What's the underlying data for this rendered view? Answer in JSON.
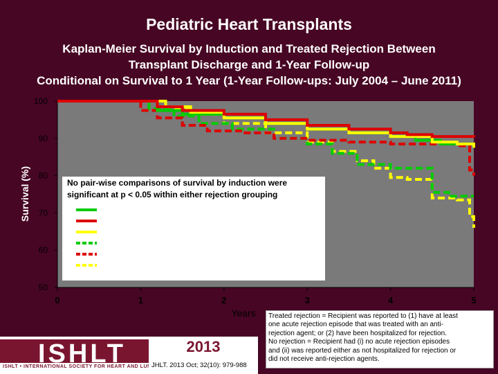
{
  "header": {
    "title": "Pediatric Heart Transplants",
    "subtitle_line1": "Kaplan-Meier Survival by Induction and Treated Rejection Between",
    "subtitle_line2": "Transplant Discharge and 1-Year Follow-up",
    "subtitle_line3": "Conditional on Survival to 1 Year (1-Year Follow-ups: July 2004 – June 2011)"
  },
  "colors": {
    "background": "#470624",
    "plot_area": "#7a7a7a",
    "green": "#00cc00",
    "red": "#dd0000",
    "yellow": "#ffff00"
  },
  "chart_data": {
    "type": "line",
    "title": "Pediatric Heart Transplants",
    "xlabel": "Years",
    "ylabel": "Survival (%)",
    "xlim": [
      0,
      5
    ],
    "ylim": [
      50,
      100
    ],
    "x_ticks": [
      "0",
      "1",
      "2",
      "3",
      "4",
      "5"
    ],
    "y_ticks": [
      "50",
      "60",
      "70",
      "80",
      "90",
      "100"
    ],
    "grid": false,
    "annotation_line1": "No pair-wise comparisons of survival by induction were",
    "annotation_line2": "significant at p < 0.05 within either rejection grouping",
    "legend_position": "middle-left",
    "series": [
      {
        "key": "red_solid",
        "color": "red",
        "dash": false,
        "x": [
          0,
          1.0,
          1.2,
          1.5,
          2.0,
          2.5,
          3.0,
          3.5,
          4.0,
          4.2,
          4.5,
          5.0
        ],
        "y": [
          100,
          100,
          98.5,
          97.5,
          96.5,
          95,
          93.5,
          92.5,
          91.5,
          91,
          90.5,
          90.2
        ]
      },
      {
        "key": "yellow_solid",
        "color": "yellow",
        "dash": false,
        "x": [
          0,
          1.1,
          1.3,
          1.6,
          2.0,
          2.5,
          3.0,
          3.5,
          4.0,
          4.5,
          4.8,
          5.0
        ],
        "y": [
          100,
          100,
          98.5,
          97,
          95.5,
          94,
          92.5,
          91.5,
          90.5,
          89,
          88.5,
          87.5
        ]
      },
      {
        "key": "green_solid",
        "color": "green",
        "dash": false,
        "x": [
          0,
          1.0,
          1.2,
          1.5,
          2.0,
          2.5,
          3.0,
          3.5,
          4.0,
          4.3,
          4.6,
          5.0
        ],
        "y": [
          100,
          100,
          97.5,
          96.5,
          95.5,
          94,
          92.5,
          91.5,
          90.5,
          89.5,
          88.5,
          87.5
        ]
      },
      {
        "key": "red_dashed",
        "color": "red",
        "dash": true,
        "x": [
          0,
          0.8,
          1.0,
          1.2,
          1.5,
          1.8,
          2.2,
          2.6,
          3.0,
          3.5,
          4.0,
          4.5,
          4.8,
          4.95,
          5.0
        ],
        "y": [
          100,
          100,
          97.5,
          95.5,
          93.5,
          92,
          91.5,
          90,
          89.5,
          89,
          88.5,
          88.5,
          88,
          81.5,
          80
        ]
      },
      {
        "key": "green_dashed",
        "color": "green",
        "dash": true,
        "x": [
          0,
          0.9,
          1.1,
          1.4,
          1.7,
          2.1,
          2.6,
          3.0,
          3.3,
          3.6,
          4.0,
          4.5,
          4.7,
          5.0
        ],
        "y": [
          100,
          100,
          98,
          96,
          94,
          92.5,
          90,
          88.5,
          86,
          83,
          82,
          75.5,
          74.5,
          74.5
        ]
      },
      {
        "key": "yellow_dashed",
        "color": "yellow",
        "dash": true,
        "x": [
          0,
          1.0,
          1.3,
          1.6,
          2.0,
          2.5,
          3.0,
          3.3,
          3.6,
          3.8,
          4.0,
          4.2,
          4.5,
          4.8,
          4.95,
          5.0
        ],
        "y": [
          100,
          100,
          98,
          96.5,
          94,
          91.5,
          89,
          86.5,
          84,
          82,
          79.5,
          79,
          74,
          73.5,
          69,
          66
        ]
      }
    ]
  },
  "note": {
    "line1": "Treated rejection = Recipient was reported to (1) have at least",
    "line2": "one acute rejection episode that was treated with an  anti-",
    "line3": "rejection agent; or (2) have been hospitalized for rejection.",
    "line4": "No rejection  = Recipient had (i) no acute rejection episodes",
    "line5": "and (ii) was reported either as not hospitalized for rejection or",
    "line6": "did not receive anti-rejection agents."
  },
  "footer": {
    "logo_text": "ISHLT",
    "logo_tagline": "ISHLT • INTERNATIONAL SOCIETY FOR HEART AND LUNG TRANSPLANTATION",
    "year": "2013",
    "citation": "JHLT. 2013 Oct; 32(10): 979-988"
  }
}
